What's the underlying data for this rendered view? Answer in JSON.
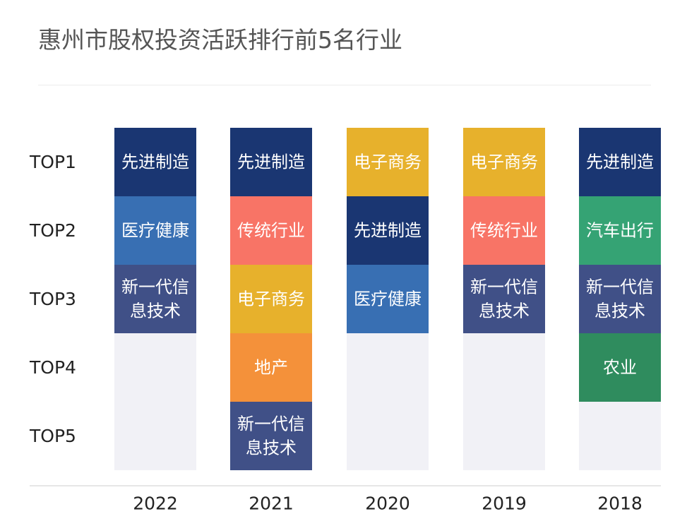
{
  "title": "惠州市股权投资活跃排行前5名行业",
  "chart_data": {
    "type": "table",
    "title": "惠州市股权投资活跃排行前5名行业",
    "ranks": [
      "TOP1",
      "TOP2",
      "TOP3",
      "TOP4",
      "TOP5"
    ],
    "years": [
      {
        "year": "2022",
        "industries": [
          "先进制造",
          "医疗健康",
          "新一代信息技术"
        ]
      },
      {
        "year": "2021",
        "industries": [
          "先进制造",
          "传统行业",
          "电子商务",
          "地产",
          "新一代信息技术"
        ]
      },
      {
        "year": "2020",
        "industries": [
          "电子商务",
          "先进制造",
          "医疗健康"
        ]
      },
      {
        "year": "2019",
        "industries": [
          "电子商务",
          "传统行业",
          "新一代信息技术"
        ]
      },
      {
        "year": "2018",
        "industries": [
          "先进制造",
          "汽车出行",
          "新一代信息技术",
          "农业"
        ]
      }
    ],
    "colors": {
      "先进制造": "#1a3672",
      "医疗健康": "#386fb3",
      "新一代信息技术": "#405087",
      "传统行业": "#f87466",
      "电子商务": "#e7b12c",
      "地产": "#f4913a",
      "汽车出行": "#35a374",
      "农业": "#2f8c5e",
      "empty": "#f1f1f6"
    }
  }
}
